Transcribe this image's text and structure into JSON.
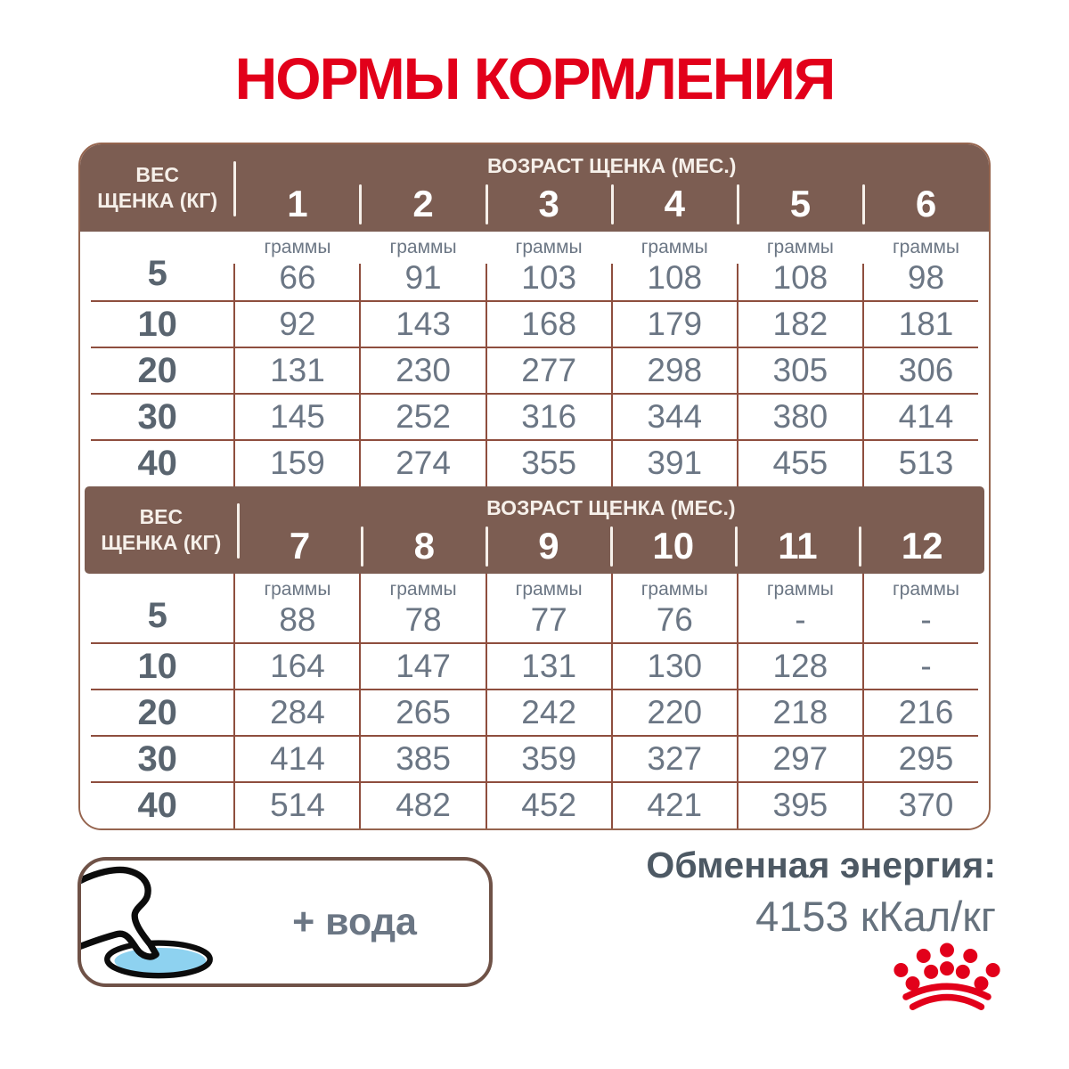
{
  "title": "НОРМЫ КОРМЛЕНИЯ",
  "tables": [
    {
      "weight_header_lines": [
        "ВЕС",
        "ЩЕНКА (КГ)"
      ],
      "age_header": "ВОЗРАСТ ЩЕНКА (МЕС.)",
      "months": [
        "1",
        "2",
        "3",
        "4",
        "5",
        "6"
      ],
      "grams_label": "граммы",
      "rows": [
        {
          "weight": "5",
          "values": [
            "66",
            "91",
            "103",
            "108",
            "108",
            "98"
          ]
        },
        {
          "weight": "10",
          "values": [
            "92",
            "143",
            "168",
            "179",
            "182",
            "181"
          ]
        },
        {
          "weight": "20",
          "values": [
            "131",
            "230",
            "277",
            "298",
            "305",
            "306"
          ]
        },
        {
          "weight": "30",
          "values": [
            "145",
            "252",
            "316",
            "344",
            "380",
            "414"
          ]
        },
        {
          "weight": "40",
          "values": [
            "159",
            "274",
            "355",
            "391",
            "455",
            "513"
          ]
        }
      ]
    },
    {
      "weight_header_lines": [
        "ВЕС",
        "ЩЕНКА (КГ)"
      ],
      "age_header": "ВОЗРАСТ ЩЕНКА (МЕС.)",
      "months": [
        "7",
        "8",
        "9",
        "10",
        "11",
        "12"
      ],
      "grams_label": "граммы",
      "rows": [
        {
          "weight": "5",
          "values": [
            "88",
            "78",
            "77",
            "76",
            "-",
            "-"
          ]
        },
        {
          "weight": "10",
          "values": [
            "164",
            "147",
            "131",
            "130",
            "128",
            "-"
          ]
        },
        {
          "weight": "20",
          "values": [
            "284",
            "265",
            "242",
            "220",
            "218",
            "216"
          ]
        },
        {
          "weight": "30",
          "values": [
            "414",
            "385",
            "359",
            "327",
            "297",
            "295"
          ]
        },
        {
          "weight": "40",
          "values": [
            "514",
            "482",
            "452",
            "421",
            "395",
            "370"
          ]
        }
      ]
    }
  ],
  "water_box": {
    "label": "+ вода",
    "icon": "dog-drinking-from-bowl-icon"
  },
  "energy": {
    "label": "Обменная энергия:",
    "value": "4153 кКал/кг"
  },
  "brand": {
    "logo": "royal-canin-crown-icon"
  },
  "colors": {
    "accent_red": "#e2001a",
    "header_brown": "#7c5d52",
    "grid_brown": "#8e4e3e",
    "text_gray": "#6b7684",
    "text_dark": "#4d5964",
    "water_blue": "#8ed2f0"
  }
}
